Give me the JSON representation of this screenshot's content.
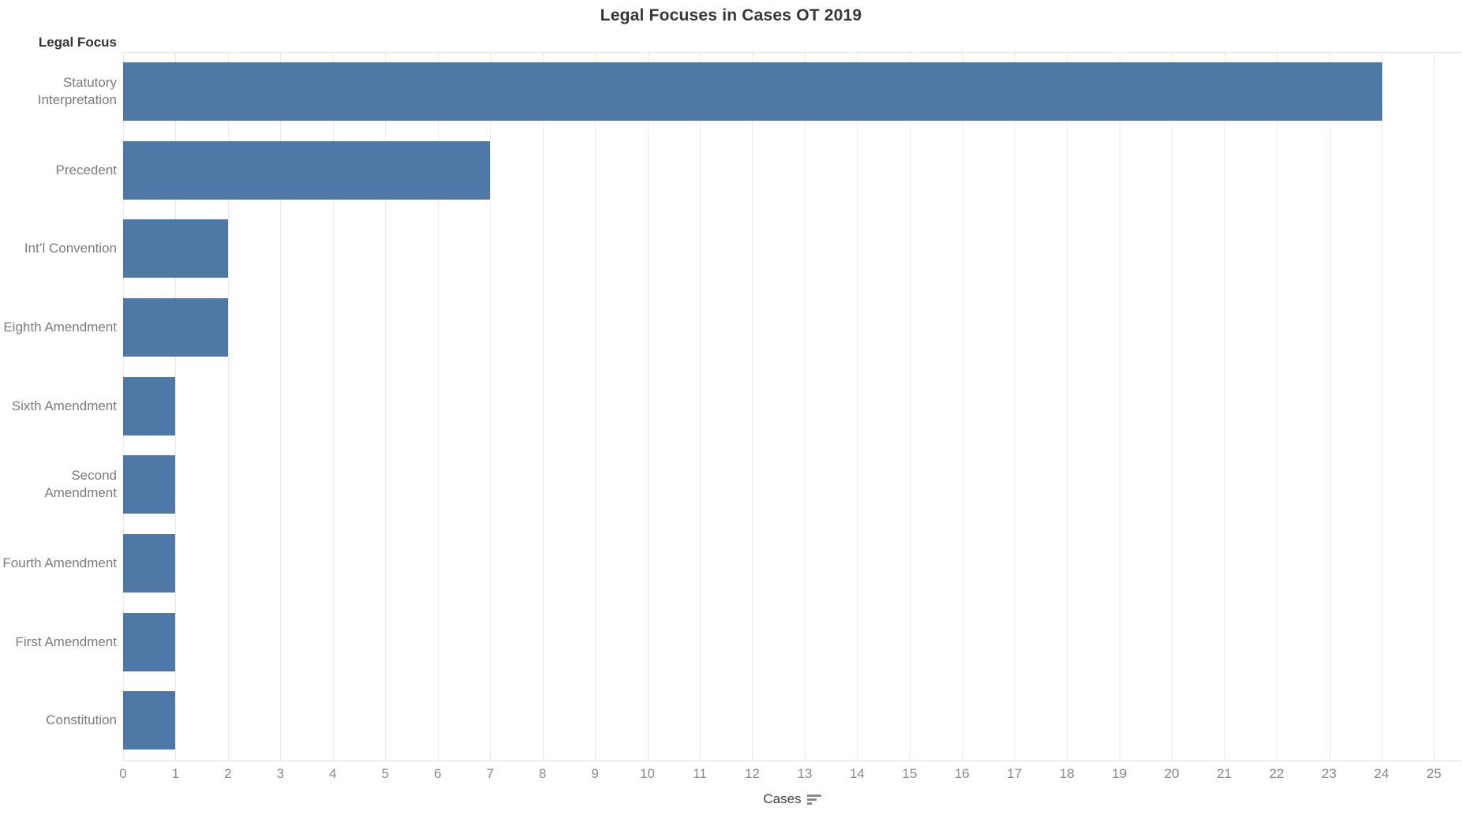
{
  "colors": {
    "bar": "#4e79a7",
    "gridline": "#e9e9e9",
    "pane_border": "#e0e0e0",
    "category_text": "#7b7b7b",
    "tick_text": "#8a8a8a",
    "title_text": "#363636"
  },
  "icons": {
    "x_axis_sort": "sort-descending-icon"
  },
  "chart_data": {
    "type": "bar",
    "orientation": "horizontal",
    "title": "Legal Focuses in Cases OT 2019",
    "ylabel": "Legal Focus",
    "xlabel": "Cases",
    "categories": [
      "Statutory Interpretation",
      "Precedent",
      "Int’l Convention",
      "Eighth Amendment",
      "Sixth Amendment",
      "Second Amendment",
      "Fourth Amendment",
      "First Amendment",
      "Constitution"
    ],
    "values": [
      24,
      7,
      2,
      2,
      1,
      1,
      1,
      1,
      1
    ],
    "xlim": [
      0,
      25.52
    ],
    "x_ticks": [
      0,
      1,
      2,
      3,
      4,
      5,
      6,
      7,
      8,
      9,
      10,
      11,
      12,
      13,
      14,
      15,
      16,
      17,
      18,
      19,
      20,
      21,
      22,
      23,
      24,
      25
    ],
    "grid": "vertical",
    "legend": "none",
    "sort": "descending"
  }
}
